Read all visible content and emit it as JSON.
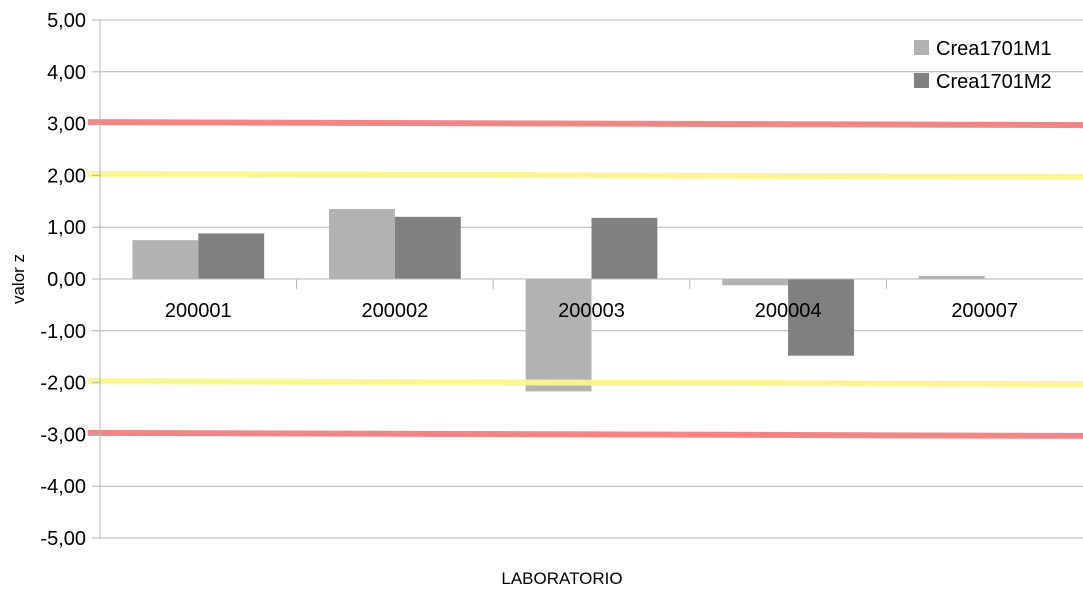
{
  "chart_data": {
    "type": "bar",
    "title": "",
    "xlabel": "LABORATORIO",
    "ylabel": "valor z",
    "ylim": [
      -5,
      5
    ],
    "yticks": [
      5,
      4,
      3,
      2,
      1,
      0,
      -1,
      -2,
      -3,
      -4,
      -5
    ],
    "ytick_labels": [
      "5,00",
      "4,00",
      "3,00",
      "2,00",
      "1,00",
      "0,00",
      "-1,00",
      "-2,00",
      "-3,00",
      "-4,00",
      "-5,00"
    ],
    "categories": [
      "200001",
      "200002",
      "200003",
      "200004",
      "200007"
    ],
    "series": [
      {
        "name": "Crea1701M1",
        "color": "#b2b2b2",
        "values": [
          0.75,
          1.35,
          -2.17,
          -0.12,
          0.06
        ]
      },
      {
        "name": "Crea1701M2",
        "color": "#808080",
        "values": [
          0.88,
          1.2,
          1.18,
          -1.48,
          null
        ]
      }
    ],
    "reference_lines": [
      {
        "value": 3,
        "color": "#f08080"
      },
      {
        "value": -3,
        "color": "#f08080"
      },
      {
        "value": 2,
        "color": "#fbf58e"
      },
      {
        "value": -2,
        "color": "#fbf58e"
      }
    ],
    "grid": true,
    "legend_position": "top-right"
  }
}
